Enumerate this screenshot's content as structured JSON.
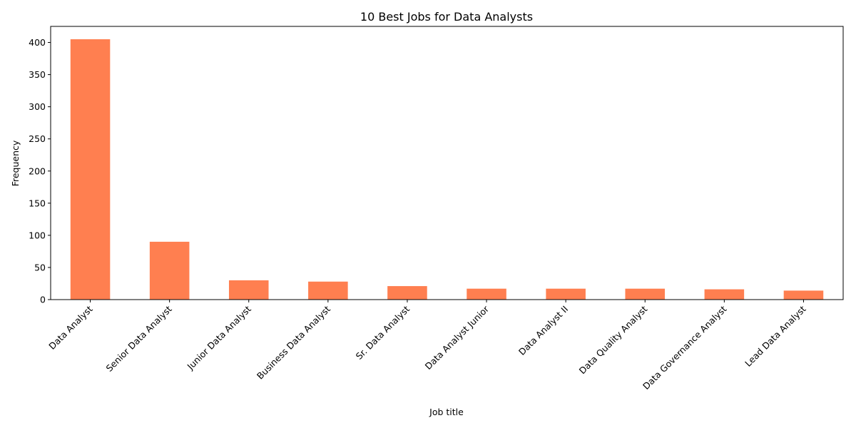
{
  "chart_data": {
    "type": "bar",
    "title": "10 Best Jobs for Data Analysts",
    "xlabel": "Job title",
    "ylabel": "Frequency",
    "categories": [
      "Data Analyst",
      "Senior Data Analyst",
      "Junior Data Analyst",
      "Business Data Analyst",
      "Sr. Data Analyst",
      "Data Analyst Junior",
      "Data Analyst II",
      "Data Quality Analyst",
      "Data Governance Analyst",
      "Lead Data Analyst"
    ],
    "values": [
      405,
      90,
      30,
      28,
      21,
      17,
      17,
      17,
      16,
      14
    ],
    "ylim": [
      0,
      425
    ],
    "yticks": [
      0,
      50,
      100,
      150,
      200,
      250,
      300,
      350,
      400
    ],
    "bar_color": "#ff7f50",
    "grid": false,
    "legend": "none"
  }
}
